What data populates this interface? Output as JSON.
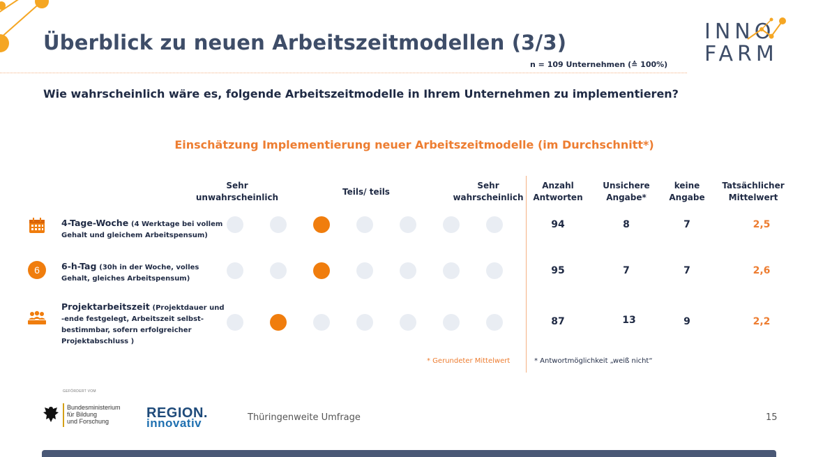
{
  "slide": {
    "title": "Überblick zu neuen Arbeitszeitmodellen (3/3)",
    "sample_note": "n = 109 Unternehmen (≙ 100%)",
    "question": "Wie wahrscheinlich wäre es, folgende Arbeitszeitmodelle in Ihrem Unternehmen zu implementieren?",
    "page_number": "15"
  },
  "logo": {
    "line1": "INNO",
    "line2": "FARM",
    "accent_color": "#f5a623"
  },
  "chart": {
    "title": "Einschätzung Implementierung neuer Arbeitszeitmodelle (im Durchschnitt*)",
    "scale_labels": {
      "low": "Sehr unwahrscheinlich",
      "mid": "Teils/ teils",
      "high": "Sehr wahrscheinlich"
    },
    "columns": {
      "answers": "Anzahl Antworten",
      "uncertain": "Unsichere Angabe*",
      "none": "keine Angabe",
      "mean": "Tatsächlicher Mittelwert"
    },
    "footnote_left": "* Gerundeter Mittelwert",
    "footnote_right": "* Antwortmöglichkeit „weiß nicht“"
  },
  "rows": [
    {
      "icon": "calendar-icon",
      "label": "4-Tage-Woche",
      "detail": "(4 Werktage bei vollem Gehalt und gleichem Arbeitspensum)",
      "answers": "94",
      "uncertain": "8",
      "none": "7",
      "mean": "2,5",
      "rounded_scale_value": 3
    },
    {
      "icon": "six-circle-icon",
      "icon_text": "6",
      "label": "6-h-Tag",
      "detail": "(30h in der Woche, volles Gehalt, gleiches Arbeitspensum)",
      "answers": "95",
      "uncertain": "7",
      "none": "7",
      "mean": "2,6",
      "rounded_scale_value": 3
    },
    {
      "icon": "team-icon",
      "label": "Projektarbeitszeit",
      "detail": "(Projektdauer und -ende festgelegt, Arbeitszeit selbst-bestimmbar, sofern erfolgreicher Projektabschluss )",
      "answers": "87",
      "uncertain": "13",
      "none": "9",
      "mean": "2,2",
      "rounded_scale_value": 2
    }
  ],
  "scale_points": 7,
  "colors": {
    "accent": "#ed7d31",
    "active_dot": "#f07d0d",
    "inactive_dot": "#e9edf3",
    "text": "#1f2a44"
  },
  "footer": {
    "funded_by": "GEFÖRDERT VOM",
    "ministry": "Bundesministerium\nfür Bildung\nund Forschung",
    "region_line1": "REGION.",
    "region_line2": "innovativ",
    "survey": "Thüringenweite Umfrage"
  }
}
